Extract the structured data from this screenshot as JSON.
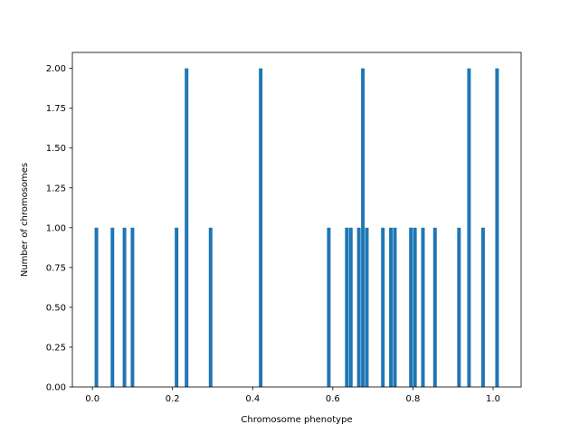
{
  "chart_data": {
    "type": "bar",
    "title": "",
    "xlabel": "Chromosome phenotype",
    "ylabel": "Number of chromosomes",
    "xlim": [
      -0.05,
      1.07
    ],
    "ylim": [
      0,
      2.1
    ],
    "grid": false,
    "bar_color": "#1f77b4",
    "bar_width": 0.009,
    "x_ticks": [
      {
        "value": 0.0,
        "label": "0.0"
      },
      {
        "value": 0.2,
        "label": "0.2"
      },
      {
        "value": 0.4,
        "label": "0.4"
      },
      {
        "value": 0.6,
        "label": "0.6"
      },
      {
        "value": 0.8,
        "label": "0.8"
      },
      {
        "value": 1.0,
        "label": "1.0"
      }
    ],
    "y_ticks": [
      {
        "value": 0.0,
        "label": "0.00"
      },
      {
        "value": 0.25,
        "label": "0.25"
      },
      {
        "value": 0.5,
        "label": "0.50"
      },
      {
        "value": 0.75,
        "label": "0.75"
      },
      {
        "value": 1.0,
        "label": "1.00"
      },
      {
        "value": 1.25,
        "label": "1.25"
      },
      {
        "value": 1.5,
        "label": "1.50"
      },
      {
        "value": 1.75,
        "label": "1.75"
      },
      {
        "value": 2.0,
        "label": "2.00"
      }
    ],
    "bars": [
      {
        "x": 0.01,
        "y": 1
      },
      {
        "x": 0.05,
        "y": 1
      },
      {
        "x": 0.08,
        "y": 1
      },
      {
        "x": 0.1,
        "y": 1
      },
      {
        "x": 0.21,
        "y": 1
      },
      {
        "x": 0.235,
        "y": 2
      },
      {
        "x": 0.295,
        "y": 1
      },
      {
        "x": 0.42,
        "y": 2
      },
      {
        "x": 0.59,
        "y": 1
      },
      {
        "x": 0.635,
        "y": 1
      },
      {
        "x": 0.645,
        "y": 1
      },
      {
        "x": 0.665,
        "y": 1
      },
      {
        "x": 0.675,
        "y": 2
      },
      {
        "x": 0.685,
        "y": 1
      },
      {
        "x": 0.725,
        "y": 1
      },
      {
        "x": 0.745,
        "y": 1
      },
      {
        "x": 0.755,
        "y": 1
      },
      {
        "x": 0.795,
        "y": 1
      },
      {
        "x": 0.805,
        "y": 1
      },
      {
        "x": 0.825,
        "y": 1
      },
      {
        "x": 0.855,
        "y": 1
      },
      {
        "x": 0.915,
        "y": 1
      },
      {
        "x": 0.94,
        "y": 2
      },
      {
        "x": 0.975,
        "y": 1
      },
      {
        "x": 1.01,
        "y": 2
      }
    ]
  }
}
